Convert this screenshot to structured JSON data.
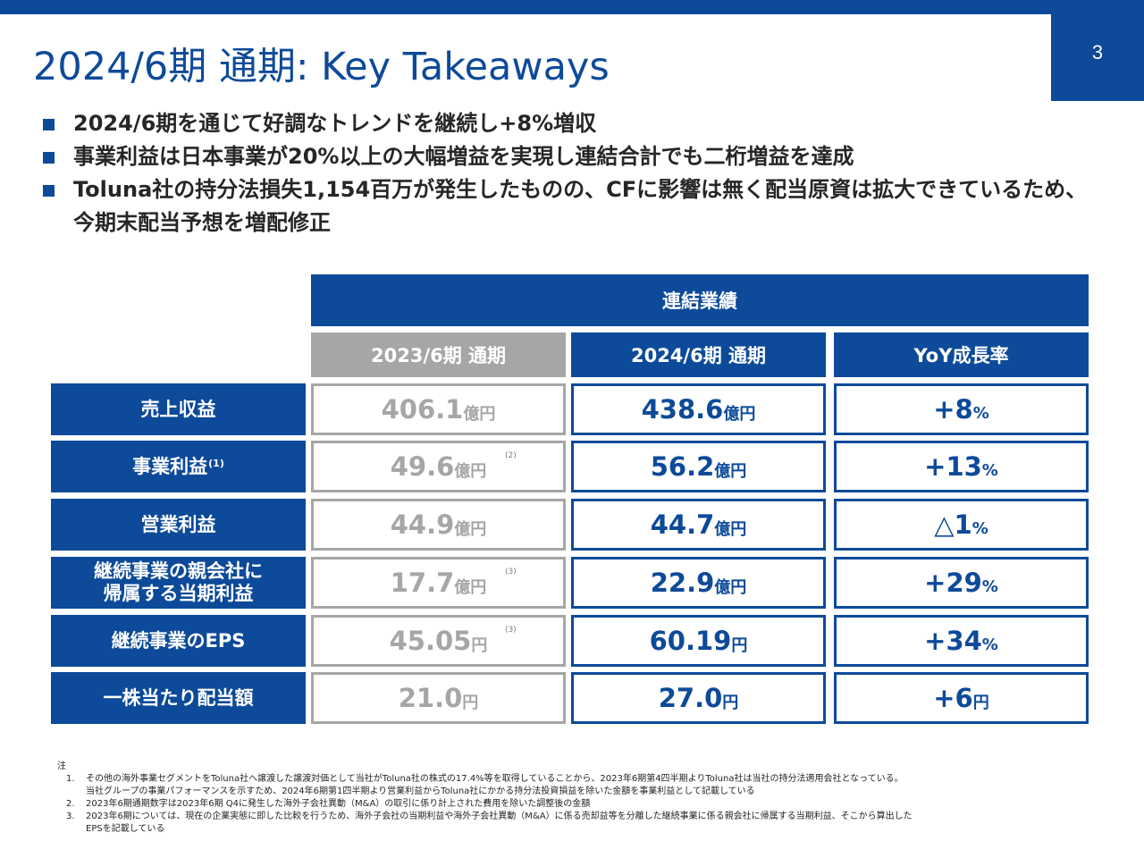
{
  "page_number": "3",
  "title": "2024/6期 通期: Key Takeaways",
  "bullets": [
    "2024/6期を通じて好調なトレンドを継続し+8%増収",
    "事業利益は日本事業が20%以上の大幅増益を実現し連結合計でも二桁増益を達成",
    "Toluna社の持分法損失1,154百万が発生したものの、CFに影響は無く配当原資は拡大できているため、今期末配当予想を増配修正"
  ],
  "table": {
    "group_header": "連結業績",
    "col_prev": "2023/6期 通期",
    "col_cur": "2024/6期 通期",
    "col_yoy": "YoY成長率",
    "rows": [
      {
        "label": "売上収益",
        "label_sup": "",
        "prev_num": "406.1",
        "prev_unit": "億円",
        "prev_note": "",
        "cur_num": "438.6",
        "cur_unit": "億円",
        "yoy_num": "+8",
        "yoy_unit": "%"
      },
      {
        "label": "事業利益",
        "label_sup": "(1)",
        "prev_num": "49.6",
        "prev_unit": "億円",
        "prev_note": "(2)",
        "cur_num": "56.2",
        "cur_unit": "億円",
        "yoy_num": "+13",
        "yoy_unit": "%"
      },
      {
        "label": "営業利益",
        "label_sup": "",
        "prev_num": "44.9",
        "prev_unit": "億円",
        "prev_note": "",
        "cur_num": "44.7",
        "cur_unit": "億円",
        "yoy_num": "△1",
        "yoy_unit": "%"
      },
      {
        "label": "継続事業の親会社に\n帰属する当期利益",
        "label_sup": "",
        "prev_num": "17.7",
        "prev_unit": "億円",
        "prev_note": "(3)",
        "cur_num": "22.9",
        "cur_unit": "億円",
        "yoy_num": "+29",
        "yoy_unit": "%"
      },
      {
        "label": "継続事業のEPS",
        "label_sup": "",
        "prev_num": "45.05",
        "prev_unit": "円",
        "prev_note": "(3)",
        "cur_num": "60.19",
        "cur_unit": "円",
        "yoy_num": "+34",
        "yoy_unit": "%"
      },
      {
        "label": "一株当たり配当額",
        "label_sup": "",
        "prev_num": "21.0",
        "prev_unit": "円",
        "prev_note": "",
        "cur_num": "27.0",
        "cur_unit": "円",
        "yoy_num": "+6",
        "yoy_unit": "円"
      }
    ]
  },
  "footnotes": {
    "heading": "注",
    "items": [
      {
        "num": "1.",
        "lines": [
          "その他の海外事業セグメントをToluna社へ譲渡した譲渡対価として当社がToluna社の株式の17.4%等を取得していることから、2023年6期第4四半期よりToluna社は当社の持分法適用会社となっている。",
          "当社グループの事業パフォーマンスを示すため、2024年6期第1四半期より営業利益からToluna社にかかる持分法投資損益を除いた金額を事業利益として記載している"
        ]
      },
      {
        "num": "2.",
        "lines": [
          "2023年6期通期数字は2023年6期 Q4に発生した海外子会社異動（M&A）の取引に係り計上された費用を除いた調整後の金額"
        ]
      },
      {
        "num": "3.",
        "lines": [
          "2023年6期については、現在の企業実態に即した比較を行うため、海外子会社の当期利益や海外子会社異動（M&A）に係る売却益等を分離した継続事業に係る親会社に帰属する当期利益、そこから算出した",
          "EPSを記載している"
        ]
      }
    ]
  },
  "colors": {
    "brand_blue": "#0d4a99",
    "prev_gray": "#a6a6a6"
  }
}
